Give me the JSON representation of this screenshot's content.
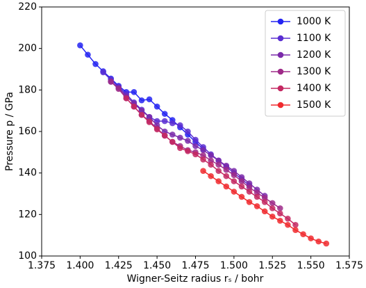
{
  "chart_data": {
    "type": "line",
    "xlabel": "Wigner-Seitz radius rₛ / bohr",
    "ylabel": "Pressure p / GPa",
    "xlim": [
      1.375,
      1.575
    ],
    "xticks": [
      {
        "value": 1.375,
        "label": "1.375"
      },
      {
        "value": 1.4,
        "label": "1.400"
      },
      {
        "value": 1.425,
        "label": "1.425"
      },
      {
        "value": 1.45,
        "label": "1.450"
      },
      {
        "value": 1.475,
        "label": "1.475"
      },
      {
        "value": 1.5,
        "label": "1.500"
      },
      {
        "value": 1.525,
        "label": "1.525"
      },
      {
        "value": 1.55,
        "label": "1.550"
      },
      {
        "value": 1.575,
        "label": "1.575"
      }
    ],
    "ylim": [
      100,
      220
    ],
    "yticks": [
      100,
      120,
      140,
      160,
      180,
      200,
      220
    ],
    "legend": "upper right",
    "series": [
      {
        "name": "1000 K",
        "color": "#2424f2",
        "x": [
          1.4,
          1.405,
          1.41,
          1.415,
          1.42,
          1.425,
          1.43,
          1.435,
          1.44,
          1.445,
          1.45,
          1.455,
          1.46,
          1.465,
          1.47,
          1.475,
          1.48
        ],
        "values": [
          201.5,
          197,
          192.5,
          189,
          185.5,
          182,
          179,
          179,
          175,
          175.5,
          172,
          168.5,
          165.5,
          162,
          158.5,
          155,
          151.5
        ]
      },
      {
        "name": "1100 K",
        "color": "#5a2ed2",
        "x": [
          1.415,
          1.42,
          1.425,
          1.43,
          1.435,
          1.44,
          1.445,
          1.45,
          1.455,
          1.46,
          1.465,
          1.47,
          1.475,
          1.48,
          1.485,
          1.49,
          1.495,
          1.5,
          1.505,
          1.51
        ],
        "values": [
          188.5,
          185,
          181.5,
          178,
          174,
          170.5,
          167,
          165,
          165,
          164,
          163,
          160,
          156,
          152.5,
          149,
          146,
          143,
          140,
          137,
          134
        ]
      },
      {
        "name": "1200 K",
        "color": "#7a2aaa",
        "x": [
          1.42,
          1.425,
          1.43,
          1.435,
          1.44,
          1.445,
          1.45,
          1.455,
          1.46,
          1.465,
          1.47,
          1.475,
          1.48,
          1.485,
          1.49,
          1.495,
          1.5,
          1.505,
          1.51,
          1.515,
          1.52
        ],
        "values": [
          184,
          181,
          177,
          173.5,
          170,
          167,
          163,
          160,
          158.5,
          157,
          155.5,
          153,
          151,
          148.5,
          146,
          143.5,
          141,
          138,
          135,
          132,
          129
        ]
      },
      {
        "name": "1300 K",
        "color": "#9e2a88",
        "x": [
          1.42,
          1.425,
          1.43,
          1.435,
          1.44,
          1.445,
          1.45,
          1.455,
          1.46,
          1.465,
          1.47,
          1.475,
          1.48,
          1.485,
          1.49,
          1.495,
          1.5,
          1.505,
          1.51,
          1.515,
          1.52,
          1.525,
          1.53
        ],
        "values": [
          184,
          180.5,
          176,
          172,
          168,
          165,
          161.5,
          158,
          155,
          153,
          151,
          150,
          148.5,
          146,
          144,
          141.5,
          139,
          136,
          133,
          130.5,
          128,
          125.5,
          123
        ]
      },
      {
        "name": "1400 K",
        "color": "#c42862",
        "x": [
          1.43,
          1.435,
          1.44,
          1.445,
          1.45,
          1.455,
          1.46,
          1.465,
          1.47,
          1.475,
          1.48,
          1.485,
          1.49,
          1.495,
          1.5,
          1.505,
          1.51,
          1.515,
          1.52,
          1.525,
          1.53,
          1.535,
          1.54
        ],
        "values": [
          176,
          172,
          168,
          164.5,
          161,
          158,
          155,
          152,
          150.5,
          149,
          146.5,
          144,
          141,
          138.5,
          136,
          133.5,
          131,
          128.5,
          126,
          123,
          120.5,
          118,
          115
        ]
      },
      {
        "name": "1500 K",
        "color": "#f02a2e",
        "x": [
          1.48,
          1.485,
          1.49,
          1.495,
          1.5,
          1.505,
          1.51,
          1.515,
          1.52,
          1.525,
          1.53,
          1.535,
          1.54,
          1.545,
          1.55,
          1.555,
          1.56
        ],
        "values": [
          141,
          138.5,
          136,
          133.5,
          131,
          128.5,
          126,
          124,
          121.5,
          119,
          117,
          115,
          112.5,
          110.5,
          108.5,
          107,
          106
        ]
      }
    ]
  }
}
